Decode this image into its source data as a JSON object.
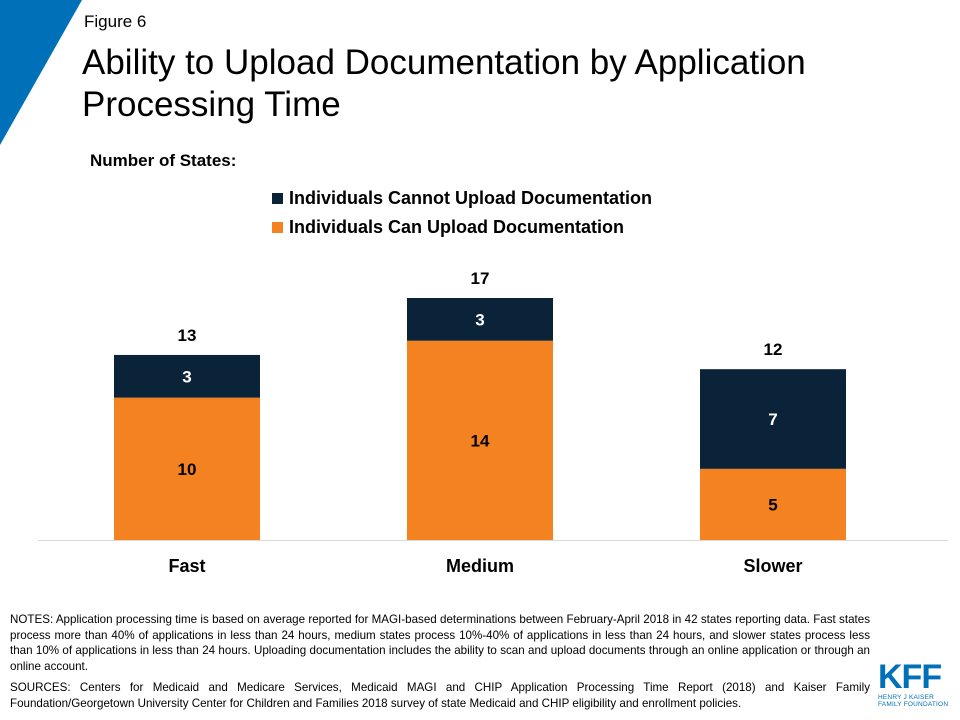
{
  "header": {
    "figure_label": "Figure 6",
    "title": "Ability to Upload Documentation by Application Processing Time"
  },
  "chart_data": {
    "type": "bar",
    "stacked": true,
    "ylabel": "Number of States:",
    "categories": [
      "Fast",
      "Medium",
      "Slower"
    ],
    "series": [
      {
        "name": "Individuals Can Upload Documentation",
        "color": "#f58220",
        "values": [
          10,
          14,
          5
        ]
      },
      {
        "name": "Individuals Cannot Upload Documentation",
        "color": "#0b2339",
        "values": [
          3,
          3,
          7
        ]
      }
    ],
    "totals": [
      13,
      17,
      12
    ],
    "legend_order": [
      1,
      0
    ],
    "legend_position": "top",
    "ylim": [
      0,
      17
    ],
    "grid": false
  },
  "footer": {
    "notes": "NOTES: Application processing time is based on average reported for MAGI-based determinations between February-April 2018 in 42 states reporting data. Fast states process more than 40% of applications in less than 24 hours, medium states process 10%-40% of applications in less than 24 hours, and slower states process less than 10% of applications in less than 24 hours. Uploading documentation includes the ability to scan and upload documents through an online application or through an online account.",
    "sources": "SOURCES: Centers for Medicaid and Medicare Services, Medicaid MAGI and CHIP Application Processing Time Report (2018) and Kaiser Family Foundation/Georgetown University Center for Children and Families 2018 survey of state Medicaid and CHIP eligibility and enrollment policies."
  },
  "logo": {
    "mark": "KFF",
    "line1": "HENRY J KAISER",
    "line2": "FAMILY FOUNDATION"
  },
  "colors": {
    "accent": "#0070b8"
  }
}
